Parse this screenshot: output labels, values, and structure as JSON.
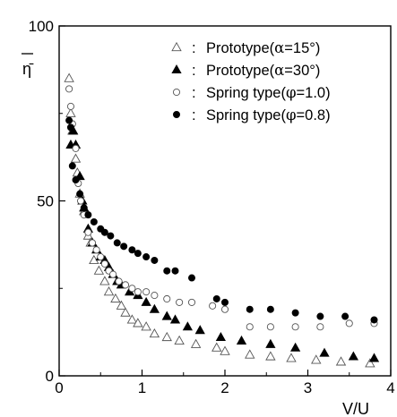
{
  "chart_data": {
    "type": "scatter",
    "title": "",
    "xlabel": "V/U",
    "ylabel": "η̄",
    "xlim": [
      0,
      4
    ],
    "ylim": [
      0,
      100
    ],
    "x_ticks": [
      "0",
      "1",
      "2",
      "3",
      "4"
    ],
    "y_ticks": [
      "0",
      "50",
      "100"
    ],
    "grid": false,
    "legend_position": "top-right",
    "series": [
      {
        "name": "Prototype(α=15°)",
        "label_main": "Prototype(",
        "label_greek": "α",
        "label_rest": "=15°)",
        "marker": "triangle-open",
        "x": [
          0.12,
          0.14,
          0.16,
          0.2,
          0.22,
          0.25,
          0.3,
          0.35,
          0.38,
          0.42,
          0.48,
          0.55,
          0.6,
          0.68,
          0.75,
          0.8,
          0.88,
          0.95,
          1.05,
          1.15,
          1.3,
          1.45,
          1.65,
          1.9,
          2.0,
          2.3,
          2.55,
          2.8,
          3.1,
          3.4,
          3.75
        ],
        "y": [
          85,
          75,
          70,
          62,
          58,
          52,
          47,
          40,
          38,
          33,
          30,
          27,
          24,
          22,
          20,
          18,
          16,
          15,
          14,
          12,
          11,
          10,
          9,
          8,
          7,
          6,
          5.5,
          5,
          4.5,
          4,
          3.5
        ]
      },
      {
        "name": "Prototype(α=30°)",
        "label_main": "Prototype(",
        "label_greek": "α",
        "label_rest": "=30°)",
        "marker": "triangle-filled",
        "x": [
          0.14,
          0.17,
          0.2,
          0.25,
          0.28,
          0.3,
          0.35,
          0.4,
          0.45,
          0.5,
          0.55,
          0.6,
          0.65,
          0.7,
          0.75,
          0.85,
          0.95,
          1.05,
          1.15,
          1.3,
          1.4,
          1.55,
          1.7,
          1.95,
          2.2,
          2.55,
          2.85,
          3.2,
          3.55,
          3.8
        ],
        "y": [
          66,
          70,
          66,
          57,
          50,
          48,
          42,
          38,
          36,
          34,
          33,
          31,
          29,
          27,
          26,
          24,
          23,
          21,
          19,
          17,
          16,
          14,
          13,
          11,
          10,
          9,
          8,
          6.5,
          5.5,
          5
        ]
      },
      {
        "name": "Spring type(φ=1.0)",
        "label_main": "Spring type(",
        "label_greek": "φ",
        "label_rest": "=1.0)",
        "marker": "circle-open",
        "x": [
          0.12,
          0.14,
          0.16,
          0.2,
          0.23,
          0.26,
          0.3,
          0.35,
          0.4,
          0.45,
          0.5,
          0.55,
          0.6,
          0.65,
          0.72,
          0.8,
          0.88,
          0.95,
          1.05,
          1.15,
          1.3,
          1.45,
          1.6,
          1.85,
          2.0,
          2.3,
          2.55,
          2.85,
          3.15,
          3.5,
          3.8
        ],
        "y": [
          82,
          77,
          72,
          65,
          55,
          50,
          46,
          41,
          38,
          36,
          34,
          32,
          30,
          29,
          27,
          26,
          25,
          24,
          24,
          23,
          22,
          21,
          21,
          20,
          19,
          14,
          14,
          14,
          14,
          15,
          15
        ]
      },
      {
        "name": "Spring type(φ=0.8)",
        "label_main": "Spring type(",
        "label_greek": "φ",
        "label_rest": "=0.8)",
        "marker": "circle-filled",
        "x": [
          0.12,
          0.14,
          0.16,
          0.2,
          0.25,
          0.3,
          0.35,
          0.42,
          0.5,
          0.55,
          0.62,
          0.7,
          0.78,
          0.88,
          0.95,
          1.05,
          1.15,
          1.3,
          1.4,
          1.6,
          1.9,
          2.0,
          2.3,
          2.55,
          2.85,
          3.15,
          3.45,
          3.8
        ],
        "y": [
          73,
          71,
          60,
          56,
          52,
          48,
          46,
          44,
          42,
          41,
          40,
          38,
          37,
          36,
          35,
          34,
          33,
          30,
          30,
          28,
          22,
          21,
          19,
          19,
          18,
          17,
          17,
          16
        ]
      }
    ]
  }
}
